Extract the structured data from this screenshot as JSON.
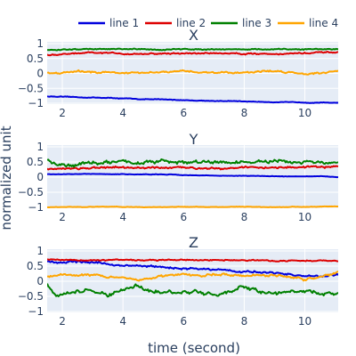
{
  "chart_data": {
    "type": "line",
    "xlabel": "time (second)",
    "ylabel": "normalized unit",
    "xlim": [
      1.5,
      11.1
    ],
    "x_ticks": [
      2,
      4,
      6,
      8,
      10
    ],
    "ylim": [
      -1,
      1
    ],
    "y_ticks": [
      -1,
      -0.5,
      0,
      0.5,
      1
    ],
    "legend": {
      "placement": "top-right",
      "orientation": "horizontal",
      "entries": [
        "line 1",
        "line 2",
        "line 3",
        "line 4"
      ]
    },
    "colors": {
      "line 1": "#0000dd",
      "line 2": "#dd0000",
      "line 3": "#008000",
      "line 4": "#ffa500"
    },
    "grid": true,
    "subplots": [
      {
        "title": "X",
        "series": [
          {
            "name": "line 1",
            "values": [
              [
                1.5,
                -0.77
              ],
              [
                2.5,
                -0.8
              ],
              [
                3.5,
                -0.82
              ],
              [
                4.5,
                -0.86
              ],
              [
                5.5,
                -0.88
              ],
              [
                6.5,
                -0.91
              ],
              [
                7.5,
                -0.93
              ],
              [
                8.5,
                -0.95
              ],
              [
                9.5,
                -0.97
              ],
              [
                11.1,
                -0.98
              ]
            ],
            "noise": 0.015,
            "wiggle": 0.01
          },
          {
            "name": "line 2",
            "values": [
              [
                1.5,
                0.62
              ],
              [
                3,
                0.68
              ],
              [
                5,
                0.66
              ],
              [
                7,
                0.68
              ],
              [
                9,
                0.66
              ],
              [
                11.1,
                0.7
              ]
            ],
            "noise": 0.025,
            "wiggle": 0.03
          },
          {
            "name": "line 3",
            "values": [
              [
                1.5,
                0.78
              ],
              [
                3,
                0.82
              ],
              [
                5,
                0.8
              ],
              [
                7,
                0.82
              ],
              [
                9,
                0.8
              ],
              [
                11.1,
                0.82
              ]
            ],
            "noise": 0.02,
            "wiggle": 0.02
          },
          {
            "name": "line 4",
            "values": [
              [
                1.5,
                0.02
              ],
              [
                3,
                0.06
              ],
              [
                4.5,
                0.0
              ],
              [
                6,
                0.06
              ],
              [
                7.5,
                0.03
              ],
              [
                9,
                0.08
              ],
              [
                10,
                0.0
              ],
              [
                11.1,
                0.08
              ]
            ],
            "noise": 0.03,
            "wiggle": 0.04
          }
        ]
      },
      {
        "title": "Y",
        "series": [
          {
            "name": "line 1",
            "values": [
              [
                1.5,
                0.1
              ],
              [
                3,
                0.1
              ],
              [
                5,
                0.09
              ],
              [
                7,
                0.05
              ],
              [
                9,
                0.03
              ],
              [
                10.5,
                0.02
              ],
              [
                11.1,
                0.0
              ]
            ],
            "noise": 0.01,
            "wiggle": 0.01
          },
          {
            "name": "line 2",
            "values": [
              [
                1.5,
                0.28
              ],
              [
                3,
                0.3
              ],
              [
                5,
                0.3
              ],
              [
                7,
                0.31
              ],
              [
                9,
                0.32
              ],
              [
                11.1,
                0.33
              ]
            ],
            "noise": 0.04,
            "wiggle": 0.03
          },
          {
            "name": "line 3",
            "values": [
              [
                1.5,
                0.6
              ],
              [
                1.8,
                0.4
              ],
              [
                3,
                0.48
              ],
              [
                5,
                0.5
              ],
              [
                7,
                0.48
              ],
              [
                9,
                0.5
              ],
              [
                11.1,
                0.45
              ]
            ],
            "noise": 0.07,
            "wiggle": 0.06
          },
          {
            "name": "line 4",
            "values": [
              [
                1.5,
                -1.0
              ],
              [
                3,
                -0.98
              ],
              [
                5,
                -0.99
              ],
              [
                7,
                -0.98
              ],
              [
                9,
                -0.99
              ],
              [
                11.1,
                -0.97
              ]
            ],
            "noise": 0.01,
            "wiggle": 0.01
          }
        ]
      },
      {
        "title": "Z",
        "series": [
          {
            "name": "line 1",
            "values": [
              [
                1.5,
                0.65
              ],
              [
                3,
                0.62
              ],
              [
                4,
                0.52
              ],
              [
                5,
                0.48
              ],
              [
                6,
                0.42
              ],
              [
                7,
                0.4
              ],
              [
                8,
                0.32
              ],
              [
                9,
                0.27
              ],
              [
                10,
                0.18
              ],
              [
                10.6,
                0.15
              ],
              [
                11.1,
                0.2
              ]
            ],
            "noise": 0.04,
            "wiggle": 0.04
          },
          {
            "name": "line 2",
            "values": [
              [
                1.5,
                0.72
              ],
              [
                3,
                0.7
              ],
              [
                5,
                0.7
              ],
              [
                7,
                0.7
              ],
              [
                9,
                0.68
              ],
              [
                11.1,
                0.68
              ]
            ],
            "noise": 0.025,
            "wiggle": 0.02
          },
          {
            "name": "line 3",
            "values": [
              [
                1.5,
                -0.1
              ],
              [
                1.8,
                -0.55
              ],
              [
                2.3,
                -0.4
              ],
              [
                3,
                -0.3
              ],
              [
                3.5,
                -0.45
              ],
              [
                4.5,
                -0.15
              ],
              [
                5.5,
                -0.4
              ],
              [
                6.5,
                -0.35
              ],
              [
                7.5,
                -0.42
              ],
              [
                8,
                -0.25
              ],
              [
                9,
                -0.4
              ],
              [
                10,
                -0.3
              ],
              [
                10.5,
                -0.4
              ],
              [
                11.1,
                -0.4
              ]
            ],
            "noise": 0.06,
            "wiggle": 0.08
          },
          {
            "name": "line 4",
            "values": [
              [
                1.5,
                0.15
              ],
              [
                2.5,
                0.25
              ],
              [
                3.5,
                0.15
              ],
              [
                4.5,
                0.08
              ],
              [
                5.5,
                0.18
              ],
              [
                6.5,
                0.2
              ],
              [
                7.5,
                0.22
              ],
              [
                8.5,
                0.22
              ],
              [
                9.5,
                0.15
              ],
              [
                10,
                0.05
              ],
              [
                10.5,
                0.12
              ],
              [
                11.1,
                0.3
              ]
            ],
            "noise": 0.04,
            "wiggle": 0.05
          }
        ]
      }
    ]
  }
}
